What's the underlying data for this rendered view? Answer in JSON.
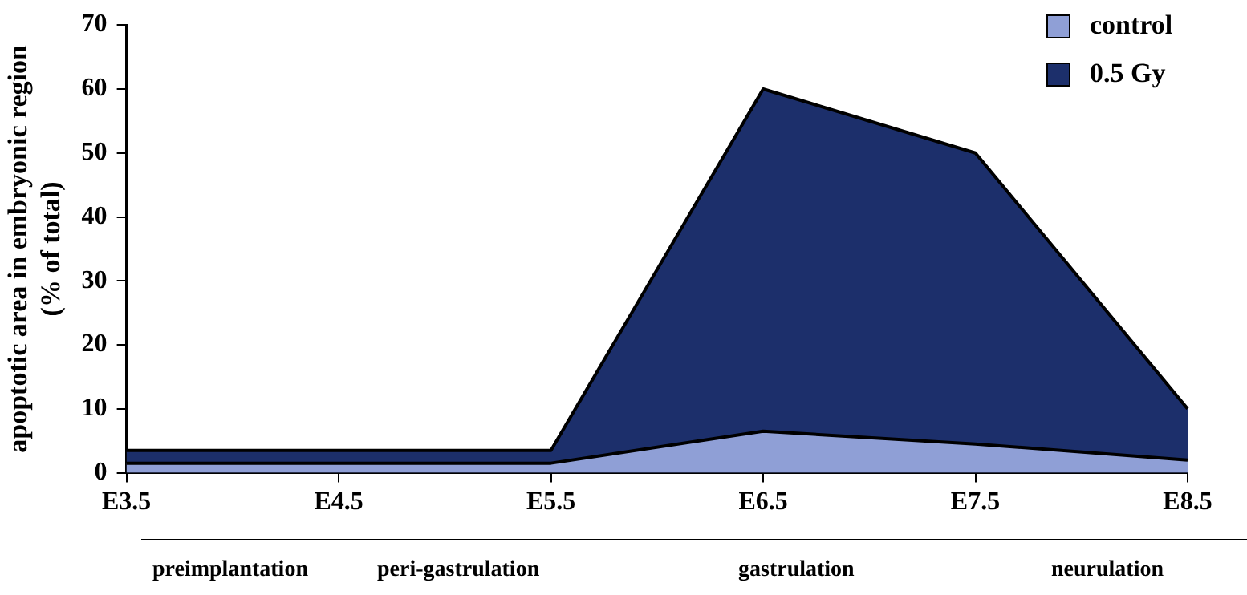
{
  "chart_data": {
    "type": "area",
    "ylabel": "apoptotic area in embryonic region\n(% of total)",
    "categories": [
      "E3.5",
      "E4.5",
      "E5.5",
      "E6.5",
      "E7.5",
      "E8.5"
    ],
    "series": [
      {
        "name": "control",
        "color": "#8f9fd6",
        "values": [
          1.5,
          1.5,
          1.5,
          6.5,
          4.5,
          2
        ]
      },
      {
        "name": "0.5 Gy",
        "color": "#1c2f6b",
        "values": [
          3.5,
          3.5,
          3.5,
          60,
          50,
          10
        ]
      }
    ],
    "ylim": [
      0,
      70
    ],
    "yticks": [
      0,
      10,
      20,
      30,
      40,
      50,
      60,
      70
    ],
    "grid": false,
    "legend": "top right",
    "annotations": [
      "preimplantation",
      "peri-gastrulation",
      "gastrulation",
      "neurulation"
    ]
  }
}
